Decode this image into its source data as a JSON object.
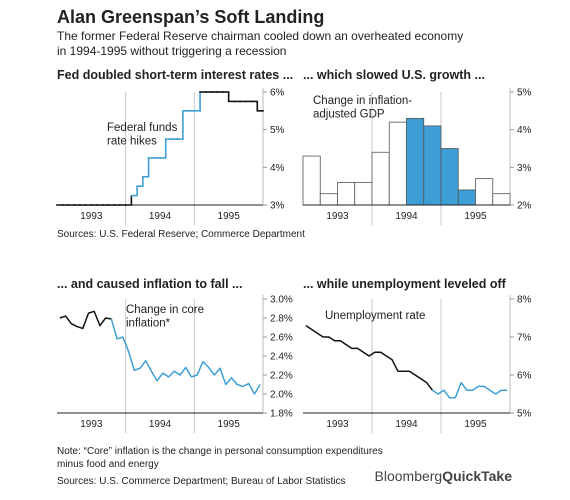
{
  "title": "Alan Greenspan’s Soft Landing",
  "subtitle": [
    "The former Federal Reserve chairman cooled down an overheated economy",
    "in 1994-1995 without triggering a recession"
  ],
  "sources_1": "Sources: U.S. Federal Reserve; Commerce Department",
  "note": [
    "Note: “Core” inflation is the change in personal consumption expenditures",
    "minus food and energy"
  ],
  "sources_2": "Sources: U.S. Commerce Department; Bureau of Labor Statistics",
  "logo": {
    "brand": "Bloomberg",
    "product": "QuickTake"
  },
  "chart_data": [
    {
      "type": "line",
      "step": true,
      "title": "Fed doubled short-term interest rates ...",
      "annotation": [
        "Federal funds",
        "rate hikes"
      ],
      "annotation_color": "#3d9fd5",
      "categories": [
        null,
        null,
        null,
        null,
        null,
        null,
        "1993",
        null,
        null,
        null,
        null,
        null,
        null,
        null,
        null,
        null,
        null,
        null,
        "1994",
        null,
        null,
        null,
        null,
        null,
        null,
        null,
        null,
        null,
        null,
        null,
        "1995",
        null,
        null,
        null,
        null,
        null
      ],
      "series": [
        {
          "color": "#111111",
          "values": [
            3,
            3,
            3,
            3,
            3,
            3,
            3,
            3,
            3,
            3,
            3,
            3,
            3,
            null,
            null,
            null,
            null,
            null,
            null,
            null,
            null,
            null,
            null,
            null,
            null,
            6,
            6,
            6,
            6,
            6,
            5.75,
            5.75,
            5.75,
            5.75,
            5.75,
            5.5
          ]
        },
        {
          "color": "#3d9fd5",
          "values": [
            null,
            null,
            null,
            null,
            null,
            null,
            null,
            null,
            null,
            null,
            null,
            null,
            null,
            3.25,
            3.5,
            3.75,
            4.25,
            4.25,
            4.25,
            4.75,
            4.75,
            4.75,
            5.5,
            5.5,
            5.5,
            null,
            null,
            null,
            null,
            null,
            null,
            null,
            null,
            null,
            null,
            null
          ]
        }
      ],
      "ylim": [
        3,
        6
      ],
      "yticks": [
        {
          "value": 3,
          "label": "3%"
        },
        {
          "value": 4,
          "label": "4%"
        },
        {
          "value": 5,
          "label": "5%"
        },
        {
          "value": 6,
          "label": "6%"
        }
      ]
    },
    {
      "type": "bar",
      "title": "... which slowed U.S. growth ...",
      "annotation": [
        "Change in inflation-",
        "adjusted GDP"
      ],
      "categories": [
        null,
        null,
        "1993",
        null,
        null,
        null,
        "1994",
        null,
        null,
        null,
        "1995",
        null
      ],
      "values": [
        3.3,
        2.3,
        2.6,
        2.6,
        3.4,
        4.2,
        4.3,
        4.1,
        3.5,
        2.4,
        2.7,
        2.3
      ],
      "colors": [
        "#ffffff",
        "#ffffff",
        "#ffffff",
        "#ffffff",
        "#ffffff",
        "#ffffff",
        "#3d9fd5",
        "#3d9fd5",
        "#3d9fd5",
        "#3d9fd5",
        "#ffffff",
        "#ffffff"
      ],
      "edgecolor": "#555555",
      "ylim": [
        2,
        5
      ],
      "yticks": [
        {
          "value": 2,
          "label": "2%"
        },
        {
          "value": 3,
          "label": "3%"
        },
        {
          "value": 4,
          "label": "4%"
        },
        {
          "value": 5,
          "label": "5%"
        }
      ]
    },
    {
      "type": "line",
      "title": "... and caused inflation to fall ...",
      "annotation": [
        "Change in core",
        "inflation*"
      ],
      "categories": [
        null,
        null,
        null,
        null,
        null,
        null,
        "1993",
        null,
        null,
        null,
        null,
        null,
        null,
        null,
        null,
        null,
        null,
        null,
        "1994",
        null,
        null,
        null,
        null,
        null,
        null,
        null,
        null,
        null,
        null,
        null,
        "1995",
        null,
        null,
        null,
        null,
        null
      ],
      "series": [
        {
          "color": "#111111",
          "values": [
            2.8,
            2.82,
            2.74,
            2.71,
            2.69,
            2.85,
            2.87,
            2.72,
            2.8,
            2.79,
            null,
            null,
            null,
            null,
            null,
            null,
            null,
            null,
            null,
            null,
            null,
            null,
            null,
            null,
            null,
            null,
            null,
            null,
            null,
            null,
            null,
            null,
            null,
            null,
            null,
            null
          ]
        },
        {
          "color": "#3d9fd5",
          "values": [
            null,
            null,
            null,
            null,
            null,
            null,
            null,
            null,
            null,
            2.79,
            2.58,
            2.6,
            2.45,
            2.25,
            2.27,
            2.35,
            2.24,
            2.14,
            2.22,
            2.18,
            2.24,
            2.2,
            2.28,
            2.18,
            2.2,
            2.34,
            2.28,
            2.2,
            2.27,
            2.1,
            2.17,
            2.1,
            2.08,
            2.11,
            2.0,
            2.1
          ]
        }
      ],
      "ylim": [
        1.8,
        3.0
      ],
      "yticks": [
        {
          "value": 1.8,
          "label": "1.8%"
        },
        {
          "value": 2.0,
          "label": "2.0%"
        },
        {
          "value": 2.2,
          "label": "2.2%"
        },
        {
          "value": 2.4,
          "label": "2.4%"
        },
        {
          "value": 2.6,
          "label": "2.6%"
        },
        {
          "value": 2.8,
          "label": "2.8%"
        },
        {
          "value": 3.0,
          "label": "3.0%"
        }
      ]
    },
    {
      "type": "line",
      "title": "... while unemployment leveled off",
      "annotation": [
        "Unemployment rate"
      ],
      "categories": [
        null,
        null,
        null,
        null,
        null,
        null,
        "1993",
        null,
        null,
        null,
        null,
        null,
        null,
        null,
        null,
        null,
        null,
        null,
        "1994",
        null,
        null,
        null,
        null,
        null,
        null,
        null,
        null,
        null,
        null,
        null,
        "1995",
        null,
        null,
        null,
        null,
        null
      ],
      "series": [
        {
          "color": "#111111",
          "values": [
            7.3,
            7.2,
            7.1,
            7.0,
            7.0,
            6.9,
            6.9,
            6.8,
            6.7,
            6.7,
            6.6,
            6.5,
            6.6,
            6.6,
            6.5,
            6.4,
            6.1,
            6.1,
            6.1,
            6.0,
            5.9,
            5.8,
            5.6,
            null,
            null,
            null,
            null,
            null,
            null,
            null,
            null,
            null,
            null,
            null,
            null,
            null
          ]
        },
        {
          "color": "#3d9fd5",
          "values": [
            null,
            null,
            null,
            null,
            null,
            null,
            null,
            null,
            null,
            null,
            null,
            null,
            null,
            null,
            null,
            null,
            null,
            null,
            null,
            null,
            null,
            null,
            5.6,
            5.5,
            5.6,
            5.4,
            5.4,
            5.8,
            5.6,
            5.6,
            5.7,
            5.7,
            5.6,
            5.5,
            5.6,
            5.6
          ]
        }
      ],
      "ylim": [
        5,
        8
      ],
      "yticks": [
        {
          "value": 5,
          "label": "5%"
        },
        {
          "value": 6,
          "label": "6%"
        },
        {
          "value": 7,
          "label": "7%"
        },
        {
          "value": 8,
          "label": "8%"
        }
      ]
    }
  ]
}
